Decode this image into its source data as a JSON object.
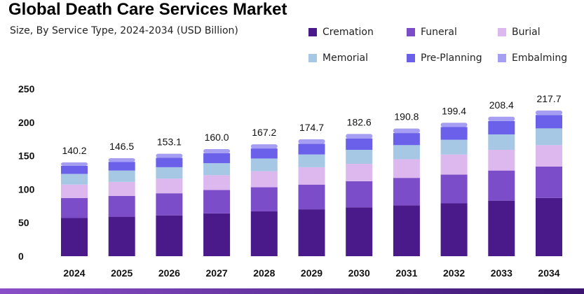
{
  "header": {
    "title": "Global Death Care Services Market",
    "subtitle": "Size, By Service Type, 2024-2034 (USD Billion)"
  },
  "colors": {
    "Cremation": "#4a1a8a",
    "Funeral": "#7c4dc8",
    "Burial": "#dcb8ee",
    "Memorial": "#a6c8e4",
    "Pre-Planning": "#6a60ea",
    "Embalming": "#a69ef2"
  },
  "chart_data": {
    "type": "bar",
    "stacked": true,
    "title": "Global Death Care Services Market",
    "subtitle": "Size, By Service Type, 2024-2034 (USD Billion)",
    "categories": [
      "2024",
      "2025",
      "2026",
      "2027",
      "2028",
      "2029",
      "2030",
      "2031",
      "2032",
      "2033",
      "2034"
    ],
    "totals": [
      "140.2",
      "146.5",
      "153.1",
      "160.0",
      "167.2",
      "174.7",
      "182.6",
      "190.8",
      "199.4",
      "208.4",
      "217.7"
    ],
    "series": [
      {
        "name": "Cremation",
        "values": [
          57,
          59,
          61,
          64,
          67,
          70,
          73,
          76,
          79,
          83,
          87
        ]
      },
      {
        "name": "Funeral",
        "values": [
          30,
          31,
          33,
          35,
          36,
          37,
          39,
          41,
          43,
          45,
          47
        ]
      },
      {
        "name": "Burial",
        "values": [
          20,
          21,
          22,
          22,
          24,
          26,
          26,
          28,
          30,
          31,
          32
        ]
      },
      {
        "name": "Memorial",
        "values": [
          16,
          17,
          17,
          18,
          19,
          19,
          21,
          21,
          22,
          23,
          25
        ]
      },
      {
        "name": "Pre-Planning",
        "values": [
          12,
          13,
          14,
          15,
          15,
          16,
          17,
          18,
          19,
          20,
          20
        ]
      },
      {
        "name": "Embalming",
        "values": [
          5.2,
          5.5,
          6.1,
          6.0,
          6.2,
          6.7,
          6.6,
          6.8,
          6.4,
          6.4,
          6.7
        ]
      }
    ],
    "xlabel": "",
    "ylabel": "",
    "ylim": [
      0,
      250
    ],
    "yticks": [
      "0",
      "50",
      "100",
      "150",
      "200",
      "250"
    ],
    "grid": false,
    "legend_position": "top-right"
  }
}
